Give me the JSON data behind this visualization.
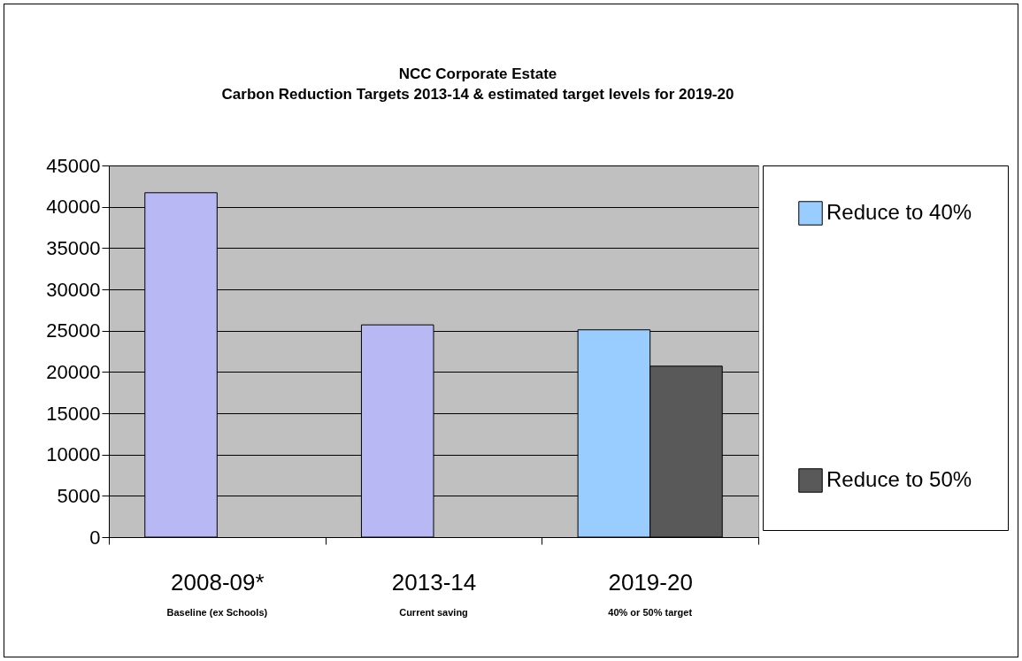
{
  "chart_data": {
    "type": "bar",
    "title": "NCC Corporate Estate",
    "subtitle": "Carbon Reduction Targets 2013-14 & estimated target levels for 2019-20",
    "categories": [
      "2008-09*",
      "2013-14",
      "2019-20"
    ],
    "annotations": [
      "Baseline (ex Schools)",
      "Current saving",
      "40% or 50% target"
    ],
    "series": [
      {
        "color": "#b8b8f4",
        "values": [
          41700,
          25700,
          null
        ]
      },
      {
        "name": "Reduce to 40%",
        "color": "#99ccff",
        "values": [
          null,
          null,
          25100
        ]
      },
      {
        "name": "Reduce to 50%",
        "color": "#595959",
        "values": [
          null,
          null,
          20700
        ]
      }
    ],
    "ylim": [
      0,
      45000
    ],
    "yticks": [
      0,
      5000,
      10000,
      15000,
      20000,
      25000,
      30000,
      35000,
      40000,
      45000
    ],
    "grid": "y",
    "legend": "right"
  }
}
